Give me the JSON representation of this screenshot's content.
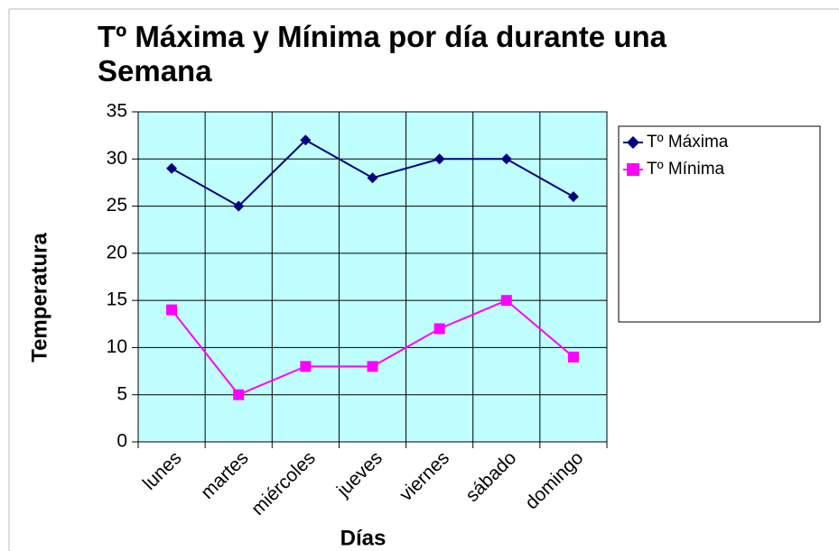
{
  "chart_data": {
    "type": "line",
    "title": "Tº Máxima y Mínima por día  durante una Semana",
    "x_label": "Días",
    "y_label": "Temperatura",
    "categories": [
      "lunes",
      "martes",
      "miércoles",
      "jueves",
      "viernes",
      "sábado",
      "domingo"
    ],
    "series": [
      {
        "name": "Tº Máxima",
        "color": "#000080",
        "values": [
          29,
          25,
          32,
          28,
          30,
          30,
          26
        ]
      },
      {
        "name": "Tº Mínima",
        "color": "#ff00ff",
        "values": [
          14,
          5,
          8,
          8,
          12,
          15,
          9
        ]
      }
    ],
    "ylim": [
      0,
      35
    ],
    "yticks": [
      0,
      5,
      10,
      15,
      20,
      25,
      30,
      35
    ],
    "grid": true,
    "legend": "right"
  }
}
